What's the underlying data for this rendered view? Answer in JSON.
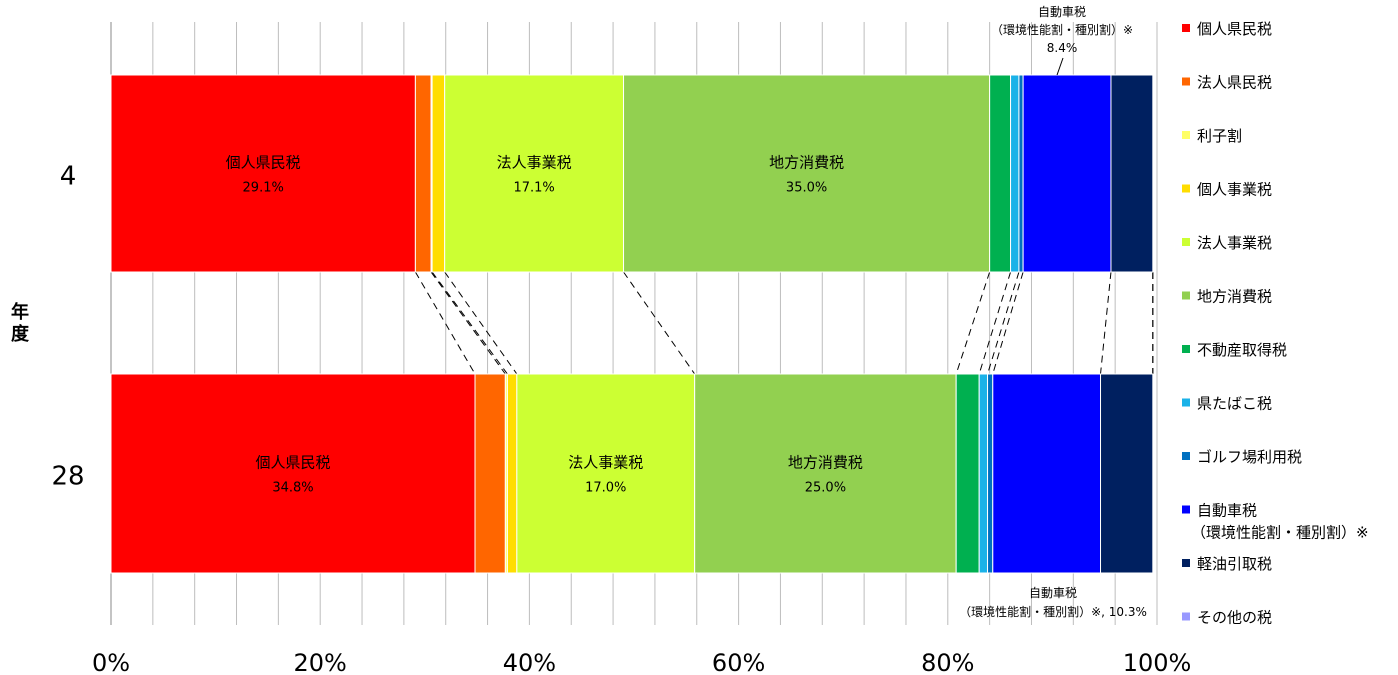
{
  "chart_data": {
    "type": "bar",
    "orientation": "horizontal",
    "stacked": "percent",
    "categories": [
      "4",
      "28"
    ],
    "ylabel": "年度",
    "xlim": [
      0,
      100
    ],
    "xticks": [
      "0%",
      "20%",
      "40%",
      "60%",
      "80%",
      "100%"
    ],
    "grid": true,
    "legend_position": "right",
    "series": [
      {
        "name": "個人県民税",
        "color": "#ff0000",
        "values": [
          29.1,
          34.8
        ],
        "labels": [
          [
            "個人県民税",
            "29.1%"
          ],
          [
            "個人県民税",
            "34.8%"
          ]
        ]
      },
      {
        "name": "法人県民税",
        "color": "#ff6600",
        "values": [
          1.5,
          2.9
        ]
      },
      {
        "name": "利子割",
        "color": "#ffff66",
        "values": [
          0.1,
          0.2
        ]
      },
      {
        "name": "個人事業税",
        "color": "#ffdd00",
        "values": [
          1.2,
          0.9
        ]
      },
      {
        "name": "法人事業税",
        "color": "#ccff33",
        "values": [
          17.1,
          17.0
        ],
        "labels": [
          [
            "法人事業税",
            "17.1%"
          ],
          [
            "法人事業税",
            "17.0%"
          ]
        ]
      },
      {
        "name": "地方消費税",
        "color": "#92d050",
        "values": [
          35.0,
          25.0
        ],
        "labels": [
          [
            "地方消費税",
            "35.0%"
          ],
          [
            "地方消費税",
            "25.0%"
          ]
        ]
      },
      {
        "name": "不動産取得税",
        "color": "#00b050",
        "values": [
          2.0,
          2.2
        ]
      },
      {
        "name": "県たばこ税",
        "color": "#1ab2e8",
        "values": [
          0.8,
          0.8
        ]
      },
      {
        "name": "ゴルフ場利用税",
        "color": "#0070c0",
        "values": [
          0.4,
          0.5
        ]
      },
      {
        "name": "自動車税\n（環境性能割・種別割）※",
        "color": "#0000ff",
        "values": [
          8.4,
          10.3
        ]
      },
      {
        "name": "軽油引取税",
        "color": "#002060",
        "values": [
          4.0,
          5.0
        ]
      },
      {
        "name": "その他の税",
        "color": "#9999ff",
        "values": [
          0.0,
          0.0
        ]
      }
    ],
    "annotations": [
      {
        "category": "4",
        "lines": [
          "自動車税",
          "（環境性能割・種別割）※",
          "8.4%"
        ]
      },
      {
        "category": "28",
        "lines": [
          "自動車税",
          "（環境性能割・種別割）※, 10.3%"
        ]
      }
    ]
  }
}
